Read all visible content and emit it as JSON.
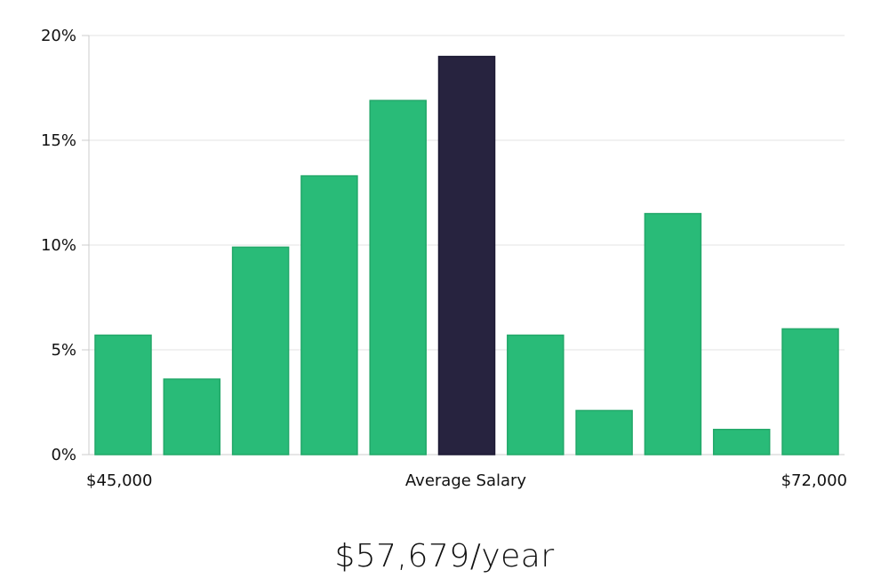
{
  "chart_data": {
    "type": "bar",
    "title": "",
    "xlabel": "Average Salary",
    "ylabel": "",
    "x_range_labels": [
      "$45,000",
      "$72,000"
    ],
    "ylim": [
      0,
      20
    ],
    "y_ticks": [
      0,
      5,
      10,
      15,
      20
    ],
    "y_tick_labels": [
      "0%",
      "5%",
      "10%",
      "15%",
      "20%"
    ],
    "values": [
      5.7,
      3.6,
      9.9,
      13.3,
      16.9,
      19.0,
      5.7,
      2.1,
      11.5,
      1.2,
      6.0
    ],
    "highlight_index": 5,
    "colors": {
      "bar": "#29bb78",
      "highlight": "#27233f",
      "grid": "#e3e3e3",
      "axis": "#cccccc"
    }
  },
  "salary_label": "$57,679/year"
}
